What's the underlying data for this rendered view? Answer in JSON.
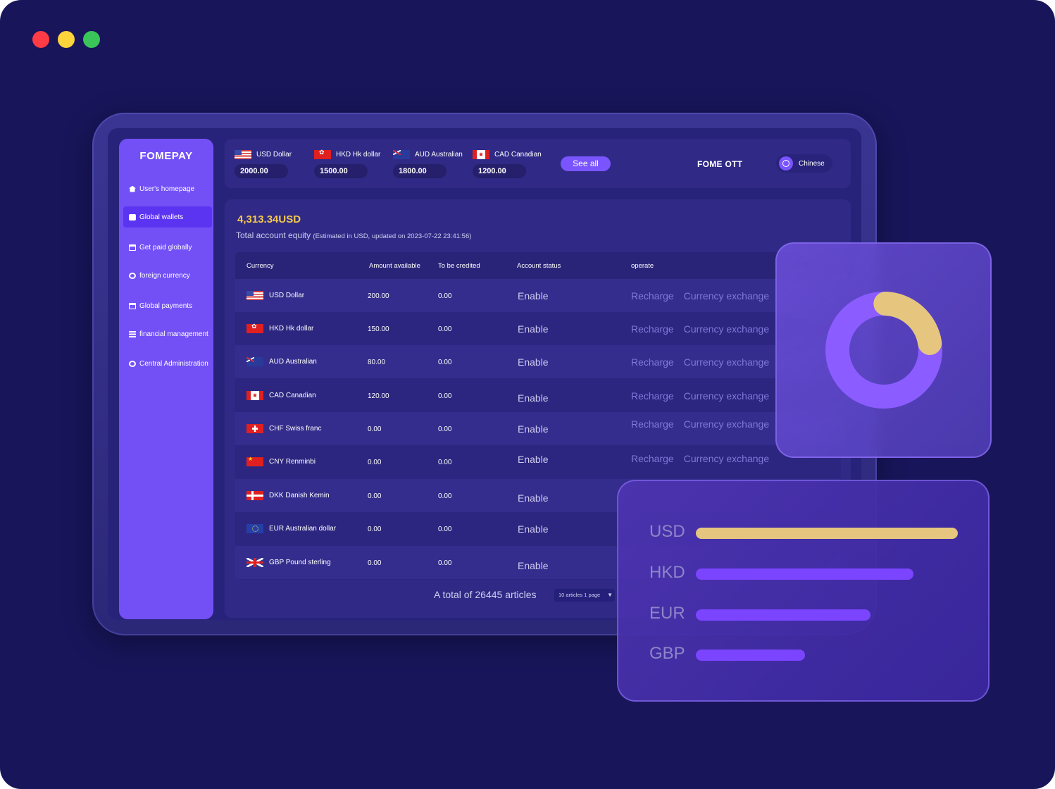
{
  "brand": {
    "logo": "FOMEPAY"
  },
  "sidebar": {
    "items": [
      {
        "label": "User's homepage",
        "icon": "home-icon",
        "active": false
      },
      {
        "label": "Global wallets",
        "icon": "wallet-icon",
        "active": true
      },
      {
        "label": "Get paid globally",
        "icon": "card-icon",
        "active": false
      },
      {
        "label": "foreign currency",
        "icon": "currency-icon",
        "active": false
      },
      {
        "label": "Global payments",
        "icon": "card-icon",
        "active": false
      },
      {
        "label": "financial management",
        "icon": "list-icon",
        "active": false
      },
      {
        "label": "Central Administration",
        "icon": "settings-icon",
        "active": false
      }
    ]
  },
  "topbar": {
    "currencies": [
      {
        "code": "USD",
        "name": "Dollar",
        "value": "2000.00",
        "flag": "us"
      },
      {
        "code": "HKD",
        "name": "Hk dollar",
        "value": "1500.00",
        "flag": "hk"
      },
      {
        "code": "AUD",
        "name": "Australian",
        "value": "1800.00",
        "flag": "au"
      },
      {
        "code": "CAD",
        "name": "Canadian",
        "value": "1200.00",
        "flag": "ca"
      }
    ],
    "see_all": "See all",
    "user": "FOME OTT",
    "language": "Chinese"
  },
  "equity": {
    "amount": "4,313.34USD",
    "label": "Total account equity",
    "note": "(Estimated in USD, updated on 2023-07-22 23:41:56)"
  },
  "table": {
    "headers": [
      "Currency",
      "Amount available",
      "To be credited",
      "Account status",
      "operate"
    ],
    "rows": [
      {
        "code": "USD",
        "name": "Dollar",
        "flag": "us",
        "available": "200.00",
        "credited": "0.00",
        "status": "Enable",
        "ops": [
          "Recharge",
          "Currency exchange"
        ]
      },
      {
        "code": "HKD",
        "name": "Hk dollar",
        "flag": "hk",
        "available": "150.00",
        "credited": "0.00",
        "status": "Enable",
        "ops": [
          "Recharge",
          "Currency exchange"
        ]
      },
      {
        "code": "AUD",
        "name": "Australian",
        "flag": "au",
        "available": "80.00",
        "credited": "0.00",
        "status": "Enable",
        "ops": [
          "Recharge",
          "Currency exchange"
        ]
      },
      {
        "code": "CAD",
        "name": "Canadian",
        "flag": "ca",
        "available": "120.00",
        "credited": "0.00",
        "status": "Enable",
        "ops": [
          "Recharge",
          "Currency exchange"
        ]
      },
      {
        "code": "CHF",
        "name": "Swiss franc",
        "flag": "ch",
        "available": "0.00",
        "credited": "0.00",
        "status": "Enable",
        "ops": [
          "Recharge",
          "Currency exchange"
        ]
      },
      {
        "code": "CNY",
        "name": "Renminbi",
        "flag": "cn",
        "available": "0.00",
        "credited": "0.00",
        "status": "Enable",
        "ops": [
          "Recharge",
          "Currency exchange"
        ]
      },
      {
        "code": "DKK",
        "name": "Danish Kemin",
        "flag": "dk",
        "available": "0.00",
        "credited": "0.00",
        "status": "Enable",
        "ops": []
      },
      {
        "code": "EUR",
        "name": "Australian dollar",
        "flag": "eu",
        "available": "0.00",
        "credited": "0.00",
        "status": "Enable",
        "ops": []
      },
      {
        "code": "GBP",
        "name": "Pound sterling",
        "flag": "gb",
        "available": "0.00",
        "credited": "0.00",
        "status": "Enable",
        "ops": []
      }
    ],
    "pager_total": "A total of 26445 articles",
    "pager_select": "10 articles 1 page"
  },
  "donut": {
    "segments": [
      {
        "color": "#e6c67e",
        "fraction": 0.22
      },
      {
        "color": "#8b5cff",
        "fraction": 0.78
      }
    ]
  },
  "bars": [
    {
      "label": "USD",
      "fraction": 1.0,
      "color": "#e6c67e"
    },
    {
      "label": "HKD",
      "fraction": 0.83,
      "color": "#7b45ff"
    },
    {
      "label": "EUR",
      "fraction": 0.667,
      "color": "#7b45ff"
    },
    {
      "label": "GBP",
      "fraction": 0.417,
      "color": "#7b45ff"
    }
  ]
}
